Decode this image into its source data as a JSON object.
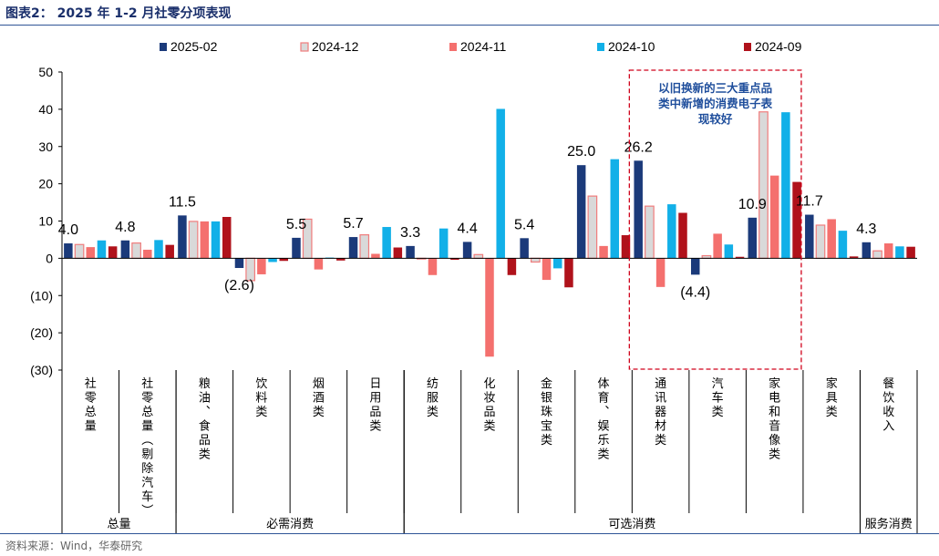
{
  "figure": {
    "title": "图表2： 2025 年 1-2 月社零分项表现",
    "source": "资料来源：Wind，华泰研究"
  },
  "chart_data": {
    "type": "bar",
    "ylim": [
      -30,
      50
    ],
    "yticks": [
      "50",
      "40",
      "30",
      "20",
      "10",
      "0",
      "(10)",
      "(20)",
      "(30)"
    ],
    "grid": false,
    "legend_position": "top",
    "categories": [
      "社零总量",
      "社零总量（剔除汽车）",
      "粮油、食品类",
      "饮料类",
      "烟酒类",
      "日用品类",
      "纺服类",
      "化妆品类",
      "金银珠宝类",
      "体育、娱乐类",
      "通讯器材类",
      "汽车类",
      "家电和音像类",
      "家具类",
      "餐饮收入"
    ],
    "groups": [
      {
        "name": "总量",
        "start": 0,
        "end": 1
      },
      {
        "name": "必需消费",
        "start": 2,
        "end": 5
      },
      {
        "name": "可选消费",
        "start": 6,
        "end": 13
      },
      {
        "name": "服务消费",
        "start": 14,
        "end": 14
      }
    ],
    "series": [
      {
        "name": "2025-02",
        "color": "#1b3a7a",
        "values": [
          4.0,
          4.8,
          11.5,
          -2.6,
          5.5,
          5.7,
          3.3,
          4.4,
          5.4,
          25.0,
          26.2,
          -4.4,
          10.9,
          11.7,
          4.3
        ]
      },
      {
        "name": "2024-12",
        "color": "#d9d9d9",
        "stroke": "#f07c7c",
        "values": [
          3.7,
          4.1,
          9.9,
          -6.0,
          10.5,
          6.3,
          -0.2,
          1.0,
          -1.0,
          16.7,
          14.0,
          0.7,
          39.3,
          8.9,
          2.0
        ]
      },
      {
        "name": "2024-11",
        "color": "#f4706e",
        "values": [
          3.0,
          2.3,
          9.9,
          -4.3,
          -3.0,
          1.2,
          -4.5,
          -26.4,
          -5.8,
          3.3,
          -7.7,
          6.6,
          22.2,
          10.5,
          4.0
        ]
      },
      {
        "name": "2024-10",
        "color": "#12b0e8",
        "values": [
          4.8,
          4.9,
          9.9,
          -1.0,
          0.2,
          8.4,
          8.0,
          40.1,
          -2.7,
          26.6,
          14.5,
          3.7,
          39.2,
          7.4,
          3.2
        ]
      },
      {
        "name": "2024-09",
        "color": "#b0121b",
        "values": [
          3.2,
          3.6,
          11.1,
          -0.7,
          -0.6,
          2.9,
          -0.4,
          -4.5,
          -7.8,
          6.2,
          12.2,
          0.4,
          20.5,
          0.5,
          3.1
        ]
      }
    ],
    "data_labels": [
      "4.0",
      "4.8",
      "11.5",
      "(2.6)",
      "5.5",
      "5.7",
      "3.3",
      "4.4",
      "5.4",
      "25.0",
      "26.2",
      "(4.4)",
      "10.9",
      "11.7",
      "4.3"
    ],
    "annotation": {
      "lines": [
        "以旧换新的三大重点品",
        "类中新增的消费电子表",
        "现较好"
      ],
      "color": "#1f4e9c",
      "border_color": "#d0021b",
      "covers": [
        "通讯器材类",
        "汽车类",
        "家电和音像类"
      ]
    }
  }
}
